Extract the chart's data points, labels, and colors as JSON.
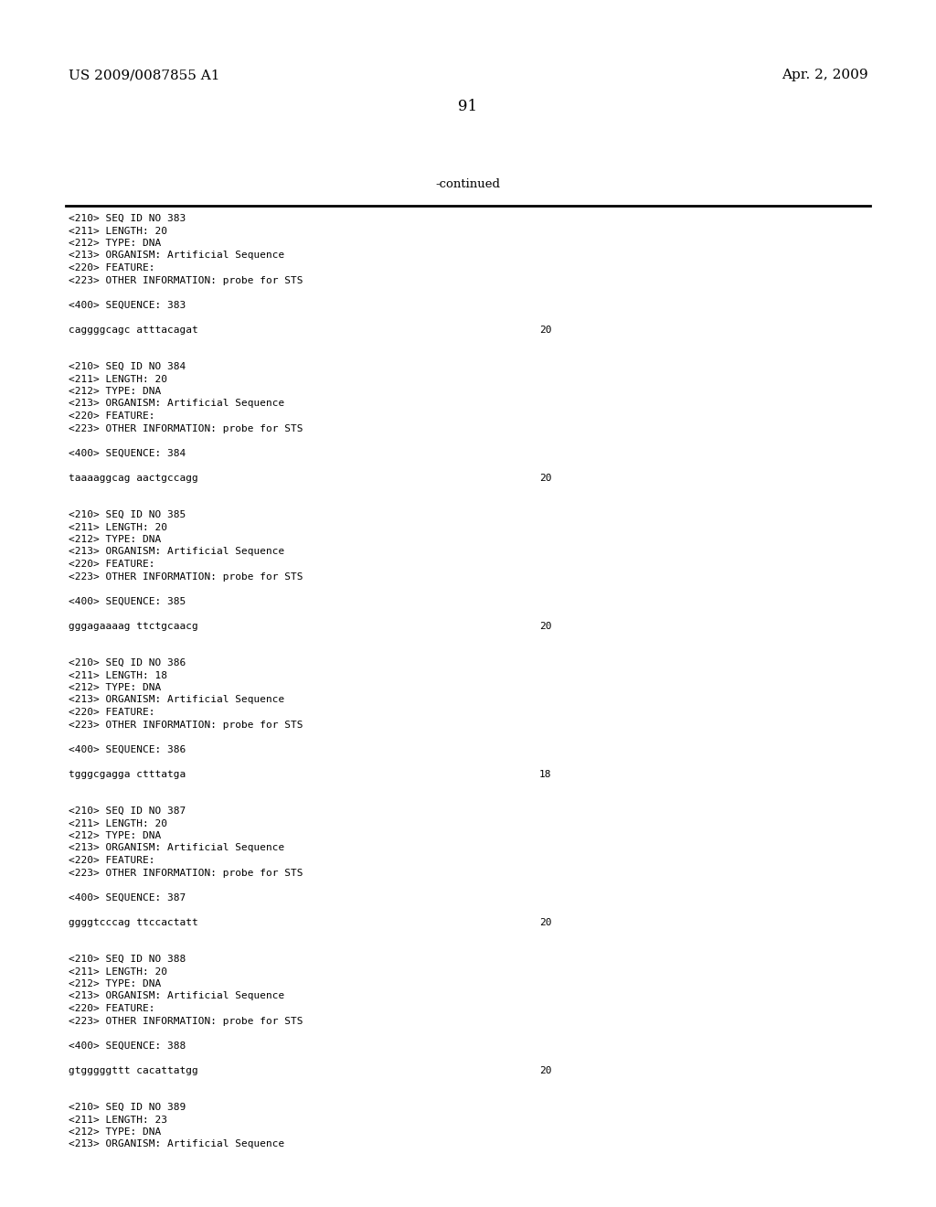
{
  "header_left": "US 2009/0087855 A1",
  "header_right": "Apr. 2, 2009",
  "page_number": "91",
  "continued_label": "-continued",
  "background_color": "#ffffff",
  "text_color": "#000000",
  "font_size_header": 11,
  "font_size_body": 8.0,
  "font_size_page": 12,
  "font_size_continued": 9.5,
  "content_lines": [
    {
      "text": "<210> SEQ ID NO 383",
      "type": "meta"
    },
    {
      "text": "<211> LENGTH: 20",
      "type": "meta"
    },
    {
      "text": "<212> TYPE: DNA",
      "type": "meta"
    },
    {
      "text": "<213> ORGANISM: Artificial Sequence",
      "type": "meta"
    },
    {
      "text": "<220> FEATURE:",
      "type": "meta"
    },
    {
      "text": "<223> OTHER INFORMATION: probe for STS",
      "type": "meta"
    },
    {
      "text": "",
      "type": "blank"
    },
    {
      "text": "<400> SEQUENCE: 383",
      "type": "meta"
    },
    {
      "text": "",
      "type": "blank"
    },
    {
      "text": "caggggcagc atttacagat",
      "type": "seq",
      "num": "20"
    },
    {
      "text": "",
      "type": "blank"
    },
    {
      "text": "",
      "type": "blank"
    },
    {
      "text": "<210> SEQ ID NO 384",
      "type": "meta"
    },
    {
      "text": "<211> LENGTH: 20",
      "type": "meta"
    },
    {
      "text": "<212> TYPE: DNA",
      "type": "meta"
    },
    {
      "text": "<213> ORGANISM: Artificial Sequence",
      "type": "meta"
    },
    {
      "text": "<220> FEATURE:",
      "type": "meta"
    },
    {
      "text": "<223> OTHER INFORMATION: probe for STS",
      "type": "meta"
    },
    {
      "text": "",
      "type": "blank"
    },
    {
      "text": "<400> SEQUENCE: 384",
      "type": "meta"
    },
    {
      "text": "",
      "type": "blank"
    },
    {
      "text": "taaaaggcag aactgccagg",
      "type": "seq",
      "num": "20"
    },
    {
      "text": "",
      "type": "blank"
    },
    {
      "text": "",
      "type": "blank"
    },
    {
      "text": "<210> SEQ ID NO 385",
      "type": "meta"
    },
    {
      "text": "<211> LENGTH: 20",
      "type": "meta"
    },
    {
      "text": "<212> TYPE: DNA",
      "type": "meta"
    },
    {
      "text": "<213> ORGANISM: Artificial Sequence",
      "type": "meta"
    },
    {
      "text": "<220> FEATURE:",
      "type": "meta"
    },
    {
      "text": "<223> OTHER INFORMATION: probe for STS",
      "type": "meta"
    },
    {
      "text": "",
      "type": "blank"
    },
    {
      "text": "<400> SEQUENCE: 385",
      "type": "meta"
    },
    {
      "text": "",
      "type": "blank"
    },
    {
      "text": "gggagaaaag ttctgcaacg",
      "type": "seq",
      "num": "20"
    },
    {
      "text": "",
      "type": "blank"
    },
    {
      "text": "",
      "type": "blank"
    },
    {
      "text": "<210> SEQ ID NO 386",
      "type": "meta"
    },
    {
      "text": "<211> LENGTH: 18",
      "type": "meta"
    },
    {
      "text": "<212> TYPE: DNA",
      "type": "meta"
    },
    {
      "text": "<213> ORGANISM: Artificial Sequence",
      "type": "meta"
    },
    {
      "text": "<220> FEATURE:",
      "type": "meta"
    },
    {
      "text": "<223> OTHER INFORMATION: probe for STS",
      "type": "meta"
    },
    {
      "text": "",
      "type": "blank"
    },
    {
      "text": "<400> SEQUENCE: 386",
      "type": "meta"
    },
    {
      "text": "",
      "type": "blank"
    },
    {
      "text": "tgggcgagga ctttatga",
      "type": "seq",
      "num": "18"
    },
    {
      "text": "",
      "type": "blank"
    },
    {
      "text": "",
      "type": "blank"
    },
    {
      "text": "<210> SEQ ID NO 387",
      "type": "meta"
    },
    {
      "text": "<211> LENGTH: 20",
      "type": "meta"
    },
    {
      "text": "<212> TYPE: DNA",
      "type": "meta"
    },
    {
      "text": "<213> ORGANISM: Artificial Sequence",
      "type": "meta"
    },
    {
      "text": "<220> FEATURE:",
      "type": "meta"
    },
    {
      "text": "<223> OTHER INFORMATION: probe for STS",
      "type": "meta"
    },
    {
      "text": "",
      "type": "blank"
    },
    {
      "text": "<400> SEQUENCE: 387",
      "type": "meta"
    },
    {
      "text": "",
      "type": "blank"
    },
    {
      "text": "ggggtcccag ttccactatt",
      "type": "seq",
      "num": "20"
    },
    {
      "text": "",
      "type": "blank"
    },
    {
      "text": "",
      "type": "blank"
    },
    {
      "text": "<210> SEQ ID NO 388",
      "type": "meta"
    },
    {
      "text": "<211> LENGTH: 20",
      "type": "meta"
    },
    {
      "text": "<212> TYPE: DNA",
      "type": "meta"
    },
    {
      "text": "<213> ORGANISM: Artificial Sequence",
      "type": "meta"
    },
    {
      "text": "<220> FEATURE:",
      "type": "meta"
    },
    {
      "text": "<223> OTHER INFORMATION: probe for STS",
      "type": "meta"
    },
    {
      "text": "",
      "type": "blank"
    },
    {
      "text": "<400> SEQUENCE: 388",
      "type": "meta"
    },
    {
      "text": "",
      "type": "blank"
    },
    {
      "text": "gtgggggttt cacattatgg",
      "type": "seq",
      "num": "20"
    },
    {
      "text": "",
      "type": "blank"
    },
    {
      "text": "",
      "type": "blank"
    },
    {
      "text": "<210> SEQ ID NO 389",
      "type": "meta"
    },
    {
      "text": "<211> LENGTH: 23",
      "type": "meta"
    },
    {
      "text": "<212> TYPE: DNA",
      "type": "meta"
    },
    {
      "text": "<213> ORGANISM: Artificial Sequence",
      "type": "meta"
    }
  ]
}
